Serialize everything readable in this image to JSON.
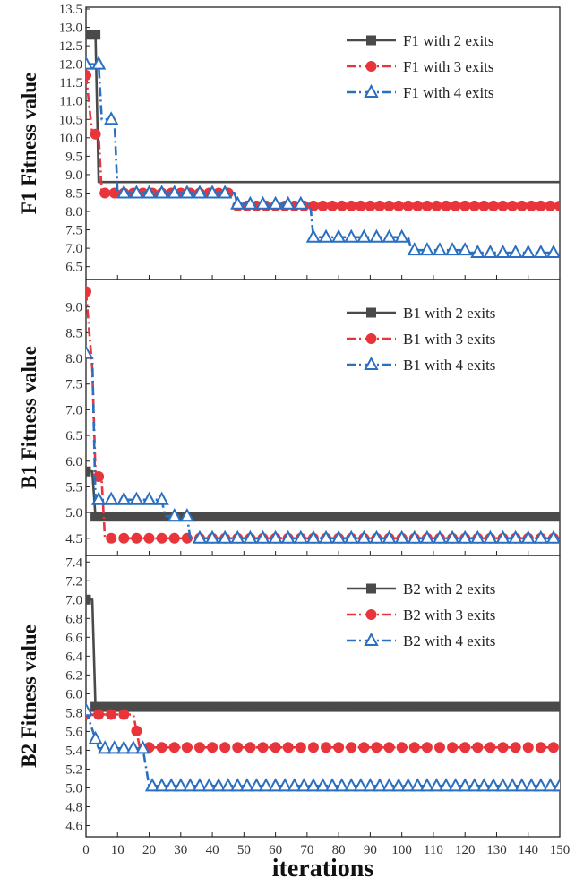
{
  "chart_data": {
    "type": "line",
    "xlabel": "iterations",
    "xlim": [
      0,
      150
    ],
    "x_ticks": [
      0,
      10,
      20,
      30,
      40,
      50,
      60,
      70,
      80,
      90,
      100,
      110,
      120,
      130,
      140,
      150
    ],
    "x_tick_labels": [
      "0",
      "10",
      "20",
      "30",
      "40",
      "50",
      "60",
      "70",
      "80",
      "90",
      "100",
      "110",
      "120",
      "130",
      "140",
      "150"
    ],
    "legend_position": "top-right",
    "panels": [
      {
        "id": "f1",
        "ylabel": "F1 Fitness value",
        "ylim": [
          6.2,
          13.5
        ],
        "y_ticks": [
          6.5,
          7.0,
          7.5,
          8.0,
          8.5,
          9.0,
          9.5,
          10.0,
          10.5,
          11.0,
          11.5,
          12.0,
          12.5,
          13.0,
          13.5
        ],
        "y_tick_labels": [
          "6.5",
          "7.0",
          "7.5",
          "8.0",
          "8.5",
          "9.0",
          "9.5",
          "10.0",
          "10.5",
          "11.0",
          "11.5",
          "12.0",
          "12.5",
          "13.0",
          "13.5"
        ],
        "series": [
          {
            "name": "F1 with 2 exits",
            "color": "#4a4a4a",
            "marker": "square",
            "dash": "solid",
            "points": [
              [
                0,
                12.8
              ],
              [
                3,
                12.8
              ],
              [
                4,
                8.8
              ],
              [
                150,
                8.8
              ]
            ],
            "marker_x": [
              0,
              3,
              5,
              150
            ],
            "marker_step": 3
          },
          {
            "name": "F1 with 3 exits",
            "color": "#e8353b",
            "marker": "circle",
            "dash": "dashdot",
            "points": [
              [
                0,
                11.7
              ],
              [
                2,
                10.1
              ],
              [
                4,
                10.1
              ],
              [
                5,
                8.5
              ],
              [
                47,
                8.5
              ],
              [
                48,
                8.15
              ],
              [
                150,
                8.15
              ]
            ],
            "marker_x": [
              0,
              150
            ],
            "marker_step": 3
          },
          {
            "name": "F1 with 4 exits",
            "color": "#2a6fc0",
            "marker": "triangle",
            "dash": "dashdot",
            "points": [
              [
                0,
                12.0
              ],
              [
                4,
                12.0
              ],
              [
                5,
                10.5
              ],
              [
                9,
                10.5
              ],
              [
                10,
                8.5
              ],
              [
                47,
                8.5
              ],
              [
                48,
                8.2
              ],
              [
                71,
                8.2
              ],
              [
                72,
                7.3
              ],
              [
                102,
                7.3
              ],
              [
                103,
                6.95
              ],
              [
                120,
                6.95
              ],
              [
                121,
                6.88
              ],
              [
                150,
                6.88
              ]
            ],
            "marker_x": [
              0,
              150
            ],
            "marker_step": 4
          }
        ]
      },
      {
        "id": "b1",
        "ylabel": "B1 Fitness value",
        "ylim": [
          4.2,
          9.5
        ],
        "y_ticks": [
          4.5,
          5.0,
          5.5,
          6.0,
          6.5,
          7.0,
          7.5,
          8.0,
          8.5,
          9.0
        ],
        "y_tick_labels": [
          "4.5",
          "5.0",
          "5.5",
          "6.0",
          "6.5",
          "7.0",
          "7.5",
          "8.0",
          "8.5",
          "9.0"
        ],
        "series": [
          {
            "name": "B1 with 2 exits",
            "color": "#4a4a4a",
            "marker": "square",
            "dash": "solid",
            "points": [
              [
                0,
                5.8
              ],
              [
                2,
                5.8
              ],
              [
                3,
                4.92
              ],
              [
                150,
                4.92
              ]
            ],
            "marker_x": [
              0,
              150
            ],
            "marker_step": 3
          },
          {
            "name": "B1 with 3 exits",
            "color": "#e8353b",
            "marker": "circle",
            "dash": "dashdot",
            "points": [
              [
                0,
                9.3
              ],
              [
                2,
                7.8
              ],
              [
                3,
                5.8
              ],
              [
                5,
                5.6
              ],
              [
                6,
                4.5
              ],
              [
                150,
                4.5
              ]
            ],
            "marker_x": [
              0,
              150
            ],
            "marker_step": 4
          },
          {
            "name": "B1 with 4 exits",
            "color": "#2a6fc0",
            "marker": "triangle",
            "dash": "dashdot",
            "points": [
              [
                0,
                8.1
              ],
              [
                2,
                8.0
              ],
              [
                3,
                5.25
              ],
              [
                24,
                5.25
              ],
              [
                25,
                4.93
              ],
              [
                32,
                4.93
              ],
              [
                33,
                4.5
              ],
              [
                150,
                4.5
              ]
            ],
            "marker_x": [
              0,
              150
            ],
            "marker_step": 4
          }
        ]
      },
      {
        "id": "b2",
        "ylabel": "B2 Fitness value",
        "ylim": [
          4.5,
          7.45
        ],
        "y_ticks": [
          4.6,
          4.8,
          5.0,
          5.2,
          5.4,
          5.6,
          5.8,
          6.0,
          6.2,
          6.4,
          6.6,
          6.8,
          7.0,
          7.2,
          7.4
        ],
        "y_tick_labels": [
          "4.6",
          "4.8",
          "5.0",
          "5.2",
          "5.4",
          "5.6",
          "5.8",
          "6.0",
          "6.2",
          "6.4",
          "6.6",
          "6.8",
          "7.0",
          "7.2",
          "7.4"
        ],
        "series": [
          {
            "name": "B2 with 2 exits",
            "color": "#4a4a4a",
            "marker": "square",
            "dash": "solid",
            "points": [
              [
                0,
                7.0
              ],
              [
                2,
                7.0
              ],
              [
                3,
                5.86
              ],
              [
                150,
                5.86
              ]
            ],
            "marker_x": [
              0,
              150
            ],
            "marker_step": 3
          },
          {
            "name": "B2 with 3 exits",
            "color": "#e8353b",
            "marker": "circle",
            "dash": "dashdot",
            "points": [
              [
                0,
                5.78
              ],
              [
                15,
                5.78
              ],
              [
                17,
                5.43
              ],
              [
                150,
                5.43
              ]
            ],
            "marker_x": [
              0,
              150
            ],
            "marker_step": 4
          },
          {
            "name": "B2 with 4 exits",
            "color": "#2a6fc0",
            "marker": "triangle",
            "dash": "dashdot",
            "points": [
              [
                0,
                5.82
              ],
              [
                4,
                5.42
              ],
              [
                18,
                5.42
              ],
              [
                20,
                5.02
              ],
              [
                150,
                5.02
              ]
            ],
            "marker_x": [
              0,
              150
            ],
            "marker_step": 3
          }
        ]
      }
    ]
  }
}
